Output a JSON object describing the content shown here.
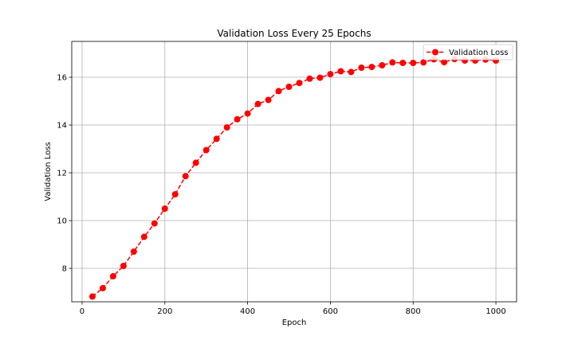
{
  "chart_data": {
    "type": "line",
    "title": "Validation Loss Every 25 Epochs",
    "xlabel": "Epoch",
    "ylabel": "Validation Loss",
    "xlim": [
      -25,
      1050
    ],
    "ylim": [
      6.6,
      17.5
    ],
    "xticks": [
      0,
      200,
      400,
      600,
      800,
      1000
    ],
    "yticks": [
      8,
      10,
      12,
      14,
      16
    ],
    "grid": true,
    "legend_position": "top-right",
    "series": [
      {
        "name": "Validation Loss",
        "color": "#ff0000",
        "line_style": "dashed",
        "marker": "circle",
        "x": [
          25,
          50,
          75,
          100,
          125,
          150,
          175,
          200,
          225,
          250,
          275,
          300,
          325,
          350,
          375,
          400,
          425,
          450,
          475,
          500,
          525,
          550,
          575,
          600,
          625,
          650,
          675,
          700,
          725,
          750,
          775,
          800,
          825,
          850,
          875,
          900,
          925,
          950,
          975,
          1000
        ],
        "y": [
          6.82,
          7.17,
          7.67,
          8.1,
          8.7,
          9.32,
          9.88,
          10.5,
          11.1,
          11.86,
          12.42,
          12.95,
          13.42,
          13.9,
          14.24,
          14.48,
          14.88,
          15.05,
          15.42,
          15.6,
          15.76,
          15.94,
          15.98,
          16.13,
          16.25,
          16.22,
          16.4,
          16.43,
          16.5,
          16.62,
          16.6,
          16.6,
          16.62,
          16.75,
          16.63,
          16.76,
          16.7,
          16.7,
          16.74,
          16.7
        ]
      }
    ]
  }
}
